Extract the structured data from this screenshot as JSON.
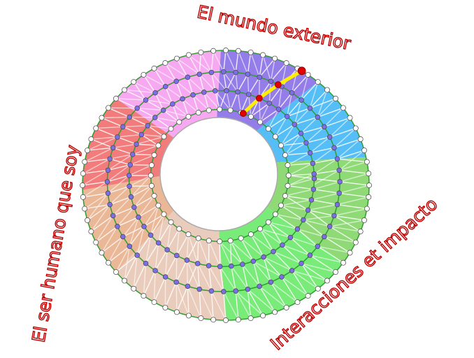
{
  "labels": {
    "top": "El mundo exterior",
    "left": "El ser humano que soy",
    "right": "Interacciones et impacto"
  },
  "sectors": [
    {
      "name": "purple",
      "color": "#8b72e6"
    },
    {
      "name": "blue",
      "color": "#46b8f6"
    },
    {
      "name": "light-green",
      "color": "#85d76a"
    },
    {
      "name": "green",
      "color": "#6ce96e"
    },
    {
      "name": "beige",
      "color": "#e8c8b6"
    },
    {
      "name": "tan",
      "color": "#e8b18e"
    },
    {
      "name": "red",
      "color": "#f17070"
    },
    {
      "name": "pink",
      "color": "#f5a2ef"
    }
  ],
  "colors": {
    "ring_line": "#2e9e2e",
    "path": "#ffee00",
    "path_dot": "#e00000",
    "inner_dot": "#7b6ee8",
    "label_outline": "#c00000"
  }
}
